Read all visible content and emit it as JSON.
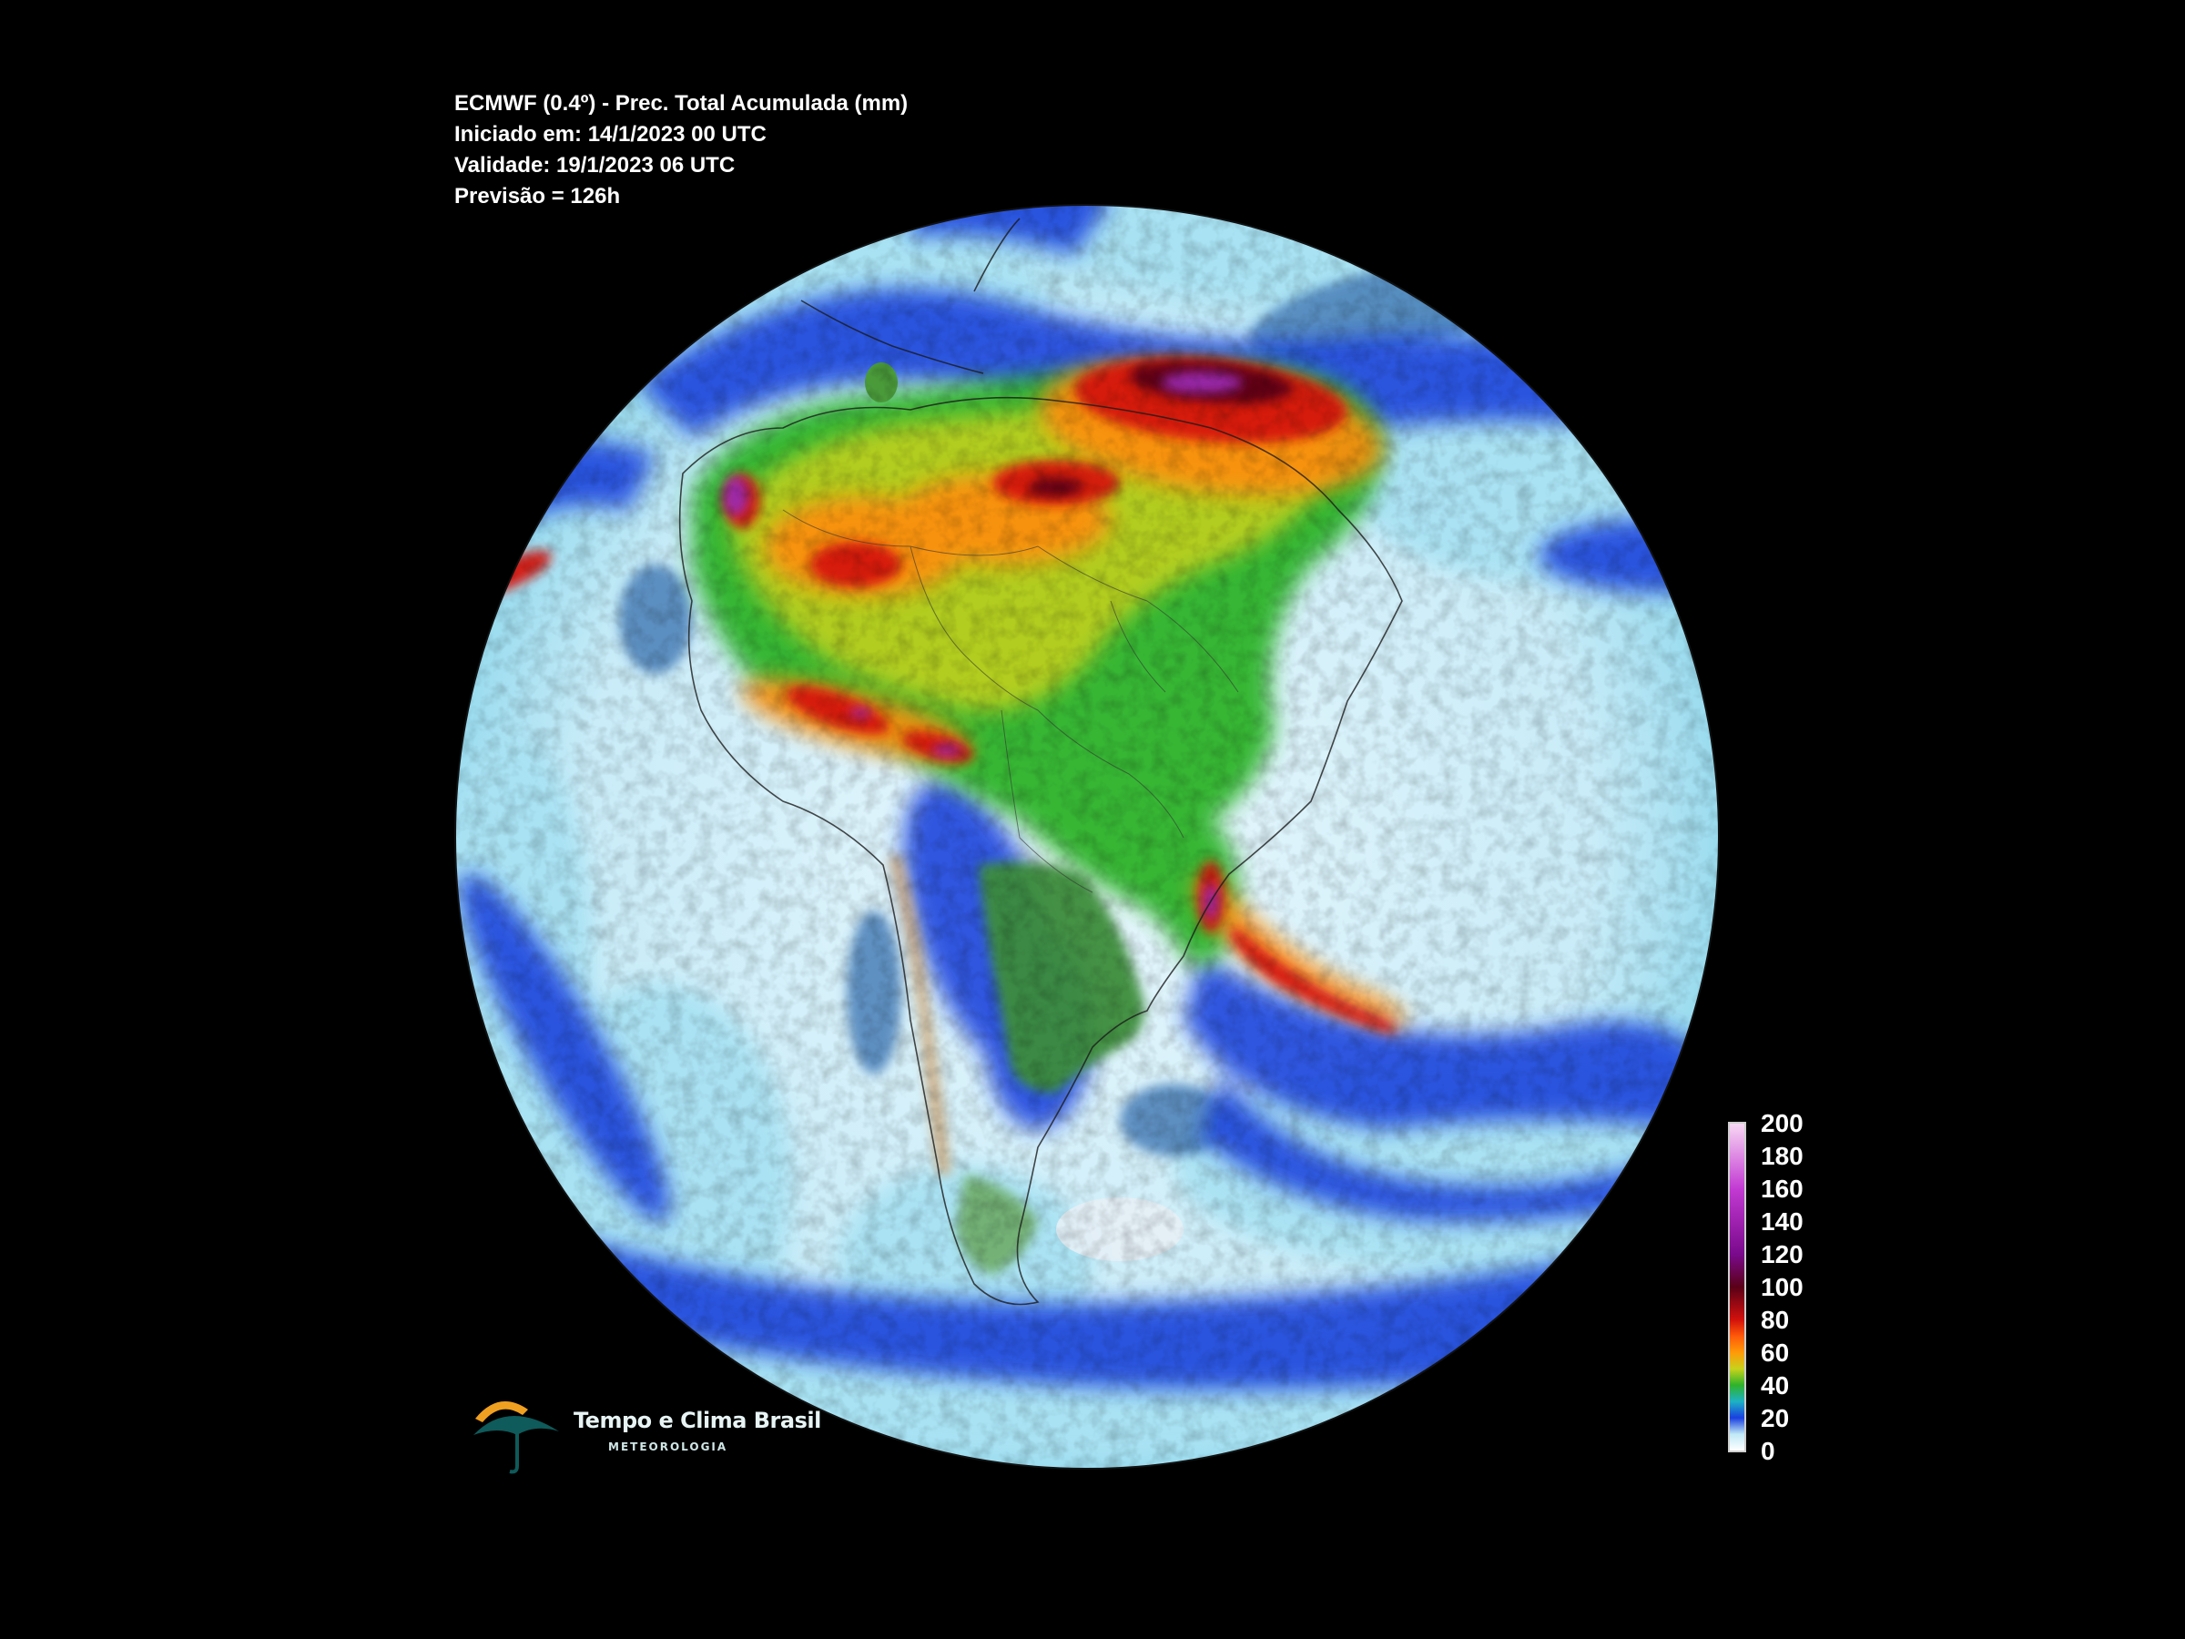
{
  "header": {
    "line1": "ECMWF (0.4º) - Prec. Total Acumulada (mm)",
    "line2": "Iniciado em: 14/1/2023 00 UTC",
    "line3": "Validade: 19/1/2023 06 UTC",
    "line4": "Previsão = 126h"
  },
  "colorbar": {
    "ticks": [
      "200",
      "180",
      "160",
      "140",
      "120",
      "100",
      "80",
      "60",
      "40",
      "20",
      "0"
    ],
    "stops": [
      {
        "value": 0,
        "color": "#ffffff"
      },
      {
        "value": 10,
        "color": "#bfe9f6"
      },
      {
        "value": 20,
        "color": "#1a3fe0"
      },
      {
        "value": 30,
        "color": "#1db2c4"
      },
      {
        "value": 40,
        "color": "#2fb32a"
      },
      {
        "value": 50,
        "color": "#c8d21c"
      },
      {
        "value": 60,
        "color": "#ff9a08"
      },
      {
        "value": 70,
        "color": "#ff5a0a"
      },
      {
        "value": 80,
        "color": "#d2110c"
      },
      {
        "value": 100,
        "color": "#5a0018"
      },
      {
        "value": 120,
        "color": "#7a0a8c"
      },
      {
        "value": 160,
        "color": "#c23ad2"
      },
      {
        "value": 200,
        "color": "#f8d8f4"
      }
    ]
  },
  "map": {
    "background": "#000000",
    "ocean_light": "#ffffff",
    "ocean_cyan": "#a9e2f3",
    "blue": "#1a44dc",
    "green": "#2fb32a",
    "yellow": "#d2d31a",
    "orange": "#ff8c0a",
    "red": "#d4140c",
    "purple": "#8a1c9e",
    "dry_land": "#3a8a35",
    "andes_dry": "#c8a070"
  },
  "logo": {
    "title": "Tempo e Clima Brasil",
    "subtitle": "METEOROLOGIA",
    "icon": "umbrella-sun-icon"
  }
}
